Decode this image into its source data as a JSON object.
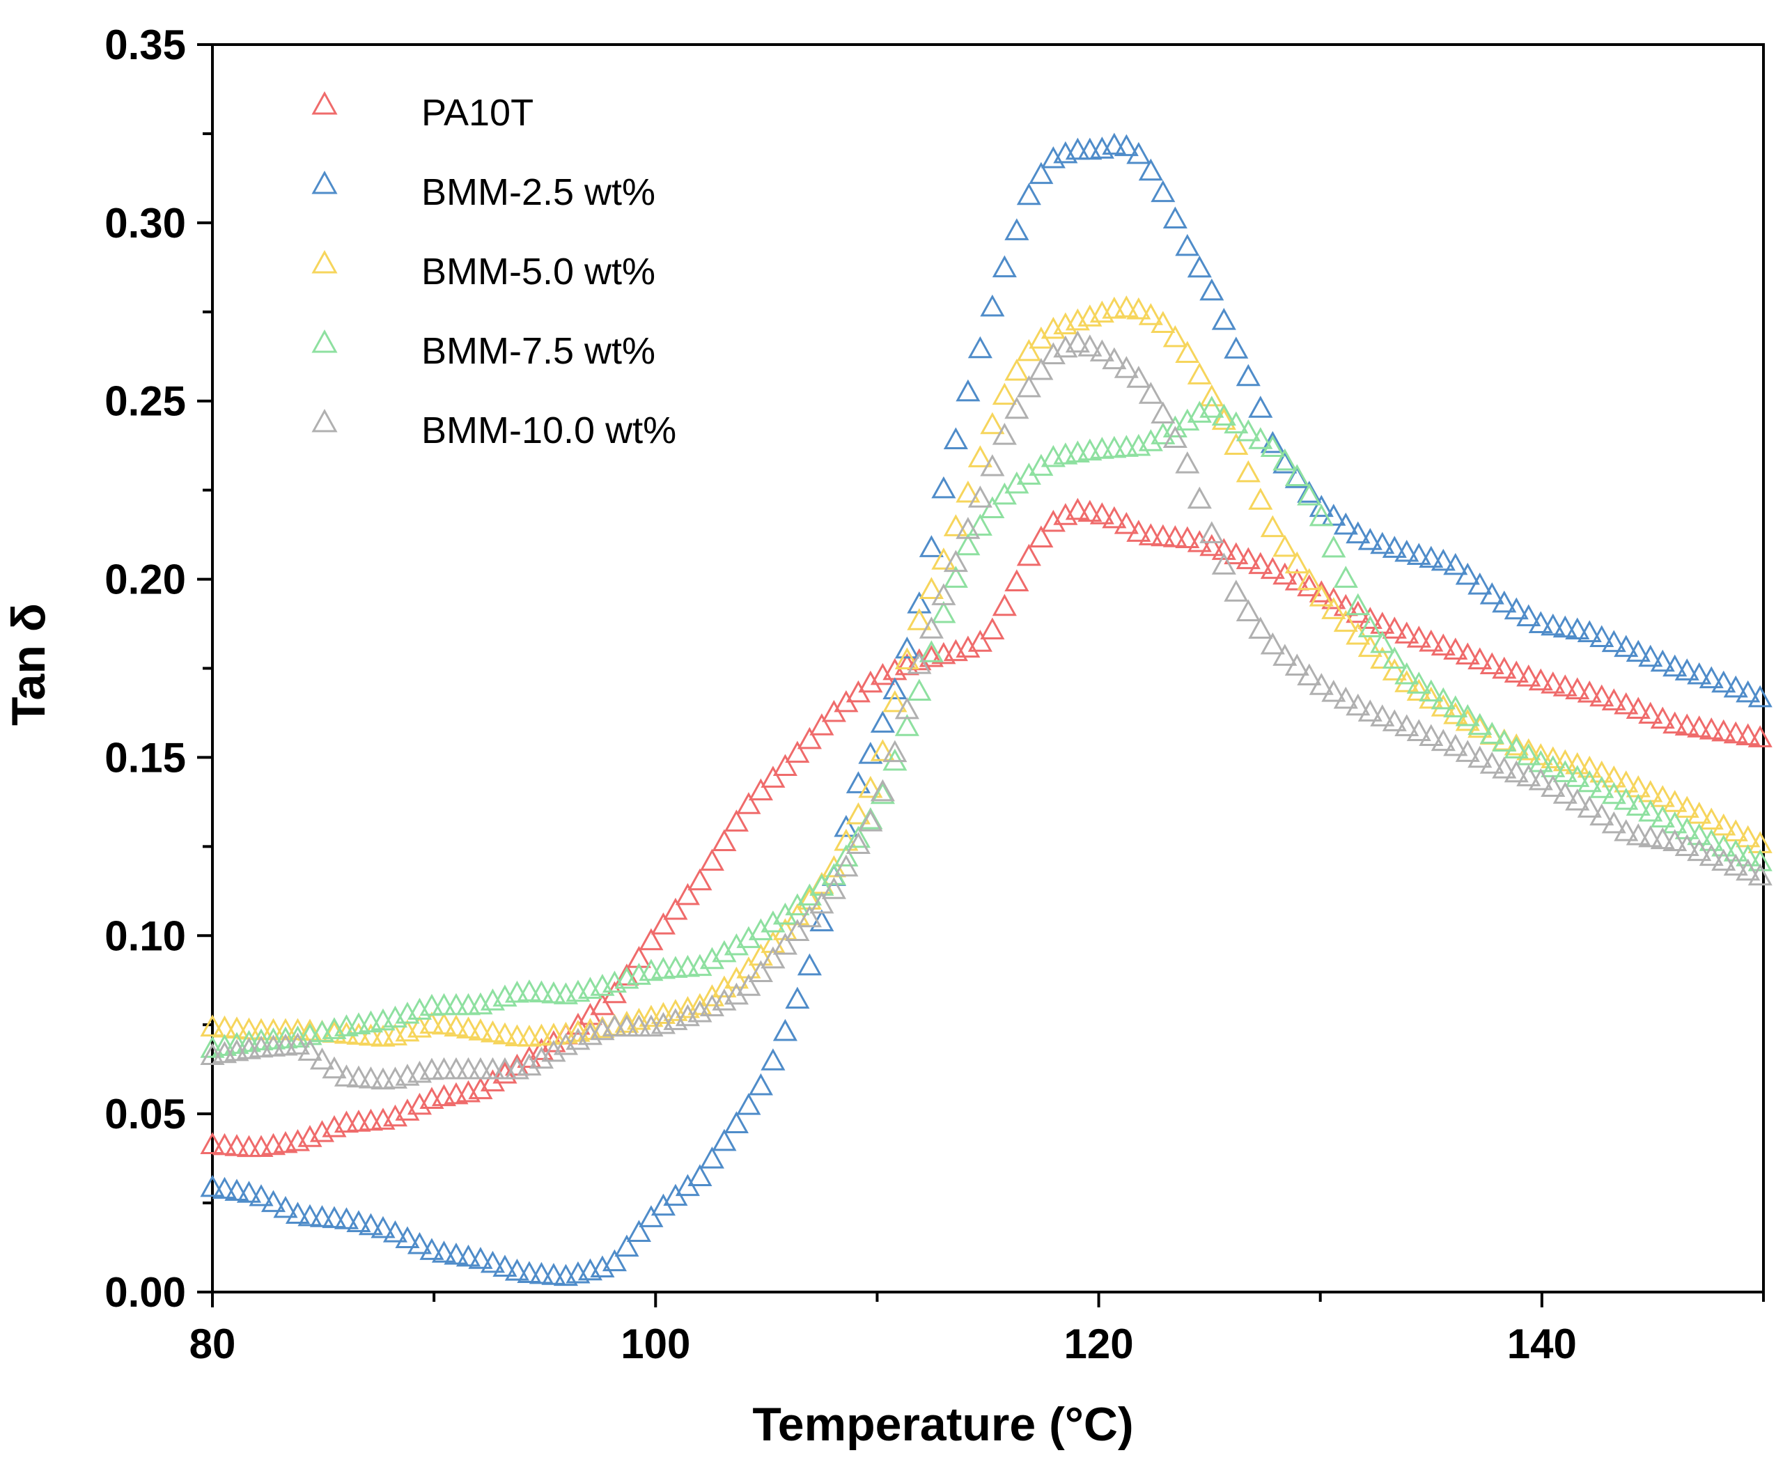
{
  "chart_data": {
    "type": "scatter",
    "xlabel": "Temperature (°C)",
    "ylabel": "Tan δ",
    "xlim": [
      80,
      150
    ],
    "ylim": [
      0,
      0.35
    ],
    "xticks": [
      "80",
      "100",
      "120",
      "140"
    ],
    "yticks": [
      "0.00",
      "0.05",
      "0.10",
      "0.15",
      "0.20",
      "0.25",
      "0.30",
      "0.35"
    ],
    "marker": "open-triangle",
    "grid": false,
    "legend_position": "top-left",
    "series": [
      {
        "name": "PA10T",
        "color": "#ef6b6b",
        "points": [
          [
            80,
            0.041
          ],
          [
            82,
            0.04
          ],
          [
            84,
            0.042
          ],
          [
            86,
            0.047
          ],
          [
            88,
            0.048
          ],
          [
            90,
            0.054
          ],
          [
            92,
            0.056
          ],
          [
            94,
            0.064
          ],
          [
            96,
            0.072
          ],
          [
            98,
            0.082
          ],
          [
            100,
            0.1
          ],
          [
            102,
            0.115
          ],
          [
            104,
            0.135
          ],
          [
            105,
            0.142
          ],
          [
            106,
            0.148
          ],
          [
            108,
            0.162
          ],
          [
            110,
            0.172
          ],
          [
            112,
            0.177
          ],
          [
            114,
            0.18
          ],
          [
            115,
            0.183
          ],
          [
            116,
            0.195
          ],
          [
            117,
            0.208
          ],
          [
            118,
            0.216
          ],
          [
            119,
            0.219
          ],
          [
            120,
            0.218
          ],
          [
            121,
            0.216
          ],
          [
            122,
            0.212
          ],
          [
            124,
            0.211
          ],
          [
            126,
            0.207
          ],
          [
            128,
            0.202
          ],
          [
            130,
            0.196
          ],
          [
            132,
            0.189
          ],
          [
            134,
            0.184
          ],
          [
            136,
            0.18
          ],
          [
            138,
            0.175
          ],
          [
            140,
            0.171
          ],
          [
            142,
            0.168
          ],
          [
            144,
            0.164
          ],
          [
            146,
            0.159
          ],
          [
            148,
            0.157
          ],
          [
            150,
            0.155
          ]
        ]
      },
      {
        "name": "BMM-2.5 wt%",
        "color": "#4f8cc9",
        "points": [
          [
            80,
            0.029
          ],
          [
            82,
            0.027
          ],
          [
            84,
            0.021
          ],
          [
            86,
            0.02
          ],
          [
            88,
            0.017
          ],
          [
            90,
            0.011
          ],
          [
            92,
            0.009
          ],
          [
            94,
            0.005
          ],
          [
            96,
            0.004
          ],
          [
            98,
            0.007
          ],
          [
            100,
            0.022
          ],
          [
            102,
            0.032
          ],
          [
            104,
            0.05
          ],
          [
            105,
            0.06
          ],
          [
            106,
            0.075
          ],
          [
            107,
            0.092
          ],
          [
            108,
            0.115
          ],
          [
            109,
            0.14
          ],
          [
            110,
            0.155
          ],
          [
            111,
            0.172
          ],
          [
            112,
            0.195
          ],
          [
            113,
            0.225
          ],
          [
            114,
            0.25
          ],
          [
            115,
            0.272
          ],
          [
            116,
            0.292
          ],
          [
            117,
            0.31
          ],
          [
            118,
            0.318
          ],
          [
            119,
            0.32
          ],
          [
            120,
            0.32
          ],
          [
            121,
            0.322
          ],
          [
            122,
            0.318
          ],
          [
            123,
            0.307
          ],
          [
            124,
            0.293
          ],
          [
            125,
            0.282
          ],
          [
            126,
            0.267
          ],
          [
            127,
            0.253
          ],
          [
            128,
            0.235
          ],
          [
            130,
            0.22
          ],
          [
            132,
            0.211
          ],
          [
            134,
            0.207
          ],
          [
            136,
            0.204
          ],
          [
            138,
            0.194
          ],
          [
            140,
            0.187
          ],
          [
            142,
            0.185
          ],
          [
            144,
            0.18
          ],
          [
            146,
            0.175
          ],
          [
            148,
            0.171
          ],
          [
            150,
            0.166
          ]
        ]
      },
      {
        "name": "BMM-5.0 wt%",
        "color": "#f6d55c",
        "points": [
          [
            80,
            0.074
          ],
          [
            82,
            0.073
          ],
          [
            84,
            0.073
          ],
          [
            86,
            0.072
          ],
          [
            88,
            0.071
          ],
          [
            90,
            0.075
          ],
          [
            92,
            0.073
          ],
          [
            94,
            0.071
          ],
          [
            96,
            0.072
          ],
          [
            98,
            0.074
          ],
          [
            100,
            0.077
          ],
          [
            102,
            0.08
          ],
          [
            104,
            0.089
          ],
          [
            106,
            0.102
          ],
          [
            108,
            0.118
          ],
          [
            110,
            0.145
          ],
          [
            111,
            0.17
          ],
          [
            112,
            0.19
          ],
          [
            113,
            0.205
          ],
          [
            114,
            0.222
          ],
          [
            115,
            0.24
          ],
          [
            116,
            0.255
          ],
          [
            117,
            0.265
          ],
          [
            118,
            0.27
          ],
          [
            120,
            0.274
          ],
          [
            121,
            0.276
          ],
          [
            122,
            0.275
          ],
          [
            123,
            0.271
          ],
          [
            124,
            0.263
          ],
          [
            125,
            0.252
          ],
          [
            126,
            0.24
          ],
          [
            127,
            0.226
          ],
          [
            128,
            0.212
          ],
          [
            130,
            0.195
          ],
          [
            132,
            0.182
          ],
          [
            134,
            0.17
          ],
          [
            136,
            0.162
          ],
          [
            138,
            0.155
          ],
          [
            140,
            0.15
          ],
          [
            142,
            0.147
          ],
          [
            144,
            0.142
          ],
          [
            146,
            0.137
          ],
          [
            148,
            0.131
          ],
          [
            150,
            0.125
          ]
        ]
      },
      {
        "name": "BMM-7.5 wt%",
        "color": "#8ee0a0",
        "points": [
          [
            80,
            0.068
          ],
          [
            82,
            0.07
          ],
          [
            84,
            0.071
          ],
          [
            86,
            0.074
          ],
          [
            88,
            0.076
          ],
          [
            90,
            0.08
          ],
          [
            92,
            0.08
          ],
          [
            94,
            0.084
          ],
          [
            96,
            0.083
          ],
          [
            98,
            0.086
          ],
          [
            100,
            0.09
          ],
          [
            102,
            0.091
          ],
          [
            104,
            0.098
          ],
          [
            106,
            0.106
          ],
          [
            108,
            0.116
          ],
          [
            110,
            0.135
          ],
          [
            111,
            0.152
          ],
          [
            112,
            0.17
          ],
          [
            113,
            0.19
          ],
          [
            114,
            0.208
          ],
          [
            115,
            0.218
          ],
          [
            116,
            0.225
          ],
          [
            118,
            0.234
          ],
          [
            120,
            0.236
          ],
          [
            122,
            0.237
          ],
          [
            124,
            0.244
          ],
          [
            125,
            0.248
          ],
          [
            126,
            0.244
          ],
          [
            128,
            0.236
          ],
          [
            129,
            0.228
          ],
          [
            130,
            0.218
          ],
          [
            131,
            0.202
          ],
          [
            132,
            0.188
          ],
          [
            134,
            0.172
          ],
          [
            136,
            0.164
          ],
          [
            138,
            0.155
          ],
          [
            140,
            0.148
          ],
          [
            142,
            0.143
          ],
          [
            144,
            0.137
          ],
          [
            146,
            0.131
          ],
          [
            148,
            0.125
          ],
          [
            150,
            0.12
          ]
        ]
      },
      {
        "name": "BMM-10.0 wt%",
        "color": "#b0b0b0",
        "points": [
          [
            80,
            0.066
          ],
          [
            82,
            0.068
          ],
          [
            84,
            0.069
          ],
          [
            86,
            0.06
          ],
          [
            88,
            0.059
          ],
          [
            90,
            0.062
          ],
          [
            92,
            0.062
          ],
          [
            94,
            0.062
          ],
          [
            96,
            0.069
          ],
          [
            98,
            0.074
          ],
          [
            100,
            0.074
          ],
          [
            102,
            0.078
          ],
          [
            104,
            0.084
          ],
          [
            106,
            0.098
          ],
          [
            108,
            0.112
          ],
          [
            110,
            0.135
          ],
          [
            111,
            0.155
          ],
          [
            112,
            0.178
          ],
          [
            113,
            0.195
          ],
          [
            114,
            0.212
          ],
          [
            115,
            0.228
          ],
          [
            116,
            0.244
          ],
          [
            117,
            0.255
          ],
          [
            118,
            0.263
          ],
          [
            119,
            0.266
          ],
          [
            120,
            0.264
          ],
          [
            121,
            0.26
          ],
          [
            122,
            0.255
          ],
          [
            123,
            0.245
          ],
          [
            124,
            0.232
          ],
          [
            125,
            0.214
          ],
          [
            126,
            0.198
          ],
          [
            127,
            0.188
          ],
          [
            128,
            0.18
          ],
          [
            130,
            0.17
          ],
          [
            132,
            0.163
          ],
          [
            134,
            0.158
          ],
          [
            136,
            0.153
          ],
          [
            138,
            0.147
          ],
          [
            140,
            0.143
          ],
          [
            142,
            0.136
          ],
          [
            144,
            0.128
          ],
          [
            146,
            0.126
          ],
          [
            148,
            0.121
          ],
          [
            150,
            0.116
          ]
        ]
      }
    ]
  }
}
